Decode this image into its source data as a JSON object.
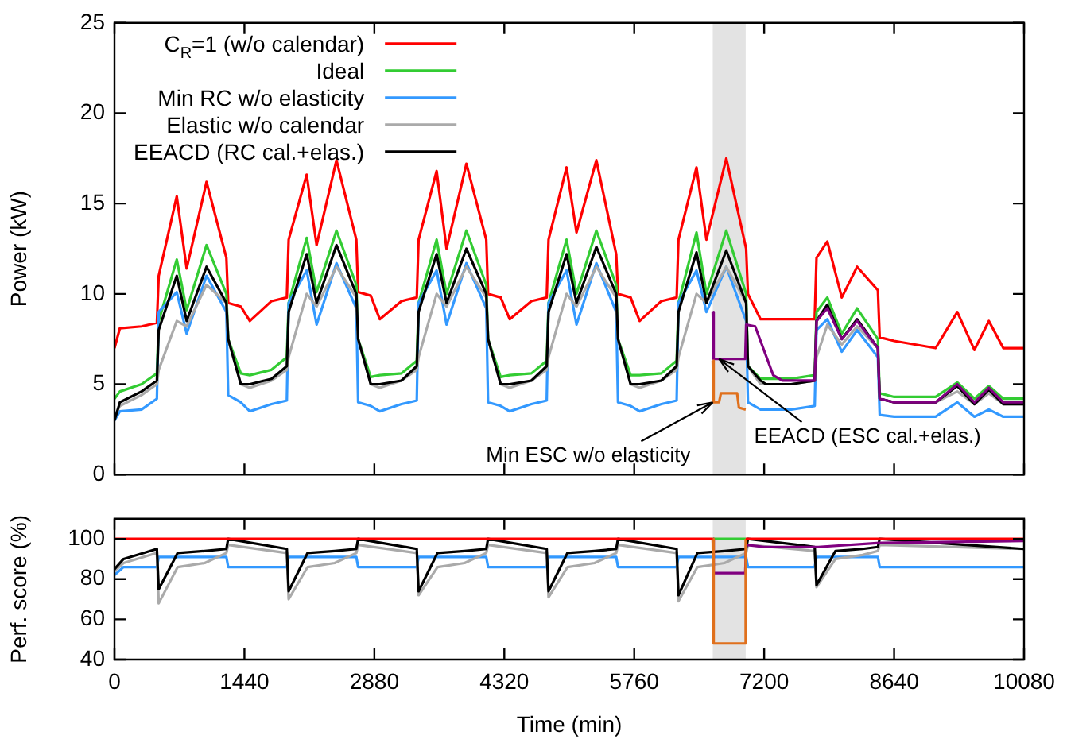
{
  "chart_data": [
    {
      "type": "line",
      "ylabel": "Power (kW)",
      "legend": "top left",
      "tick_labels": "y",
      "xlim": [
        0,
        10080
      ],
      "xticks": [
        0,
        1440,
        2880,
        4320,
        5760,
        7200,
        8640,
        10080
      ],
      "ylim": [
        0,
        25
      ],
      "yticks": [
        0,
        5,
        10,
        15,
        20,
        25
      ],
      "bands": [
        {
          "axis": "x",
          "from": 6630,
          "to": 6995,
          "color": "#e3e3e3"
        }
      ],
      "annotations": [
        {
          "text": "Min ESC w/o elasticity",
          "x": 6630,
          "y": 4
        },
        {
          "text": "EEACD (ESC cal.+elas.)",
          "x": 6700,
          "y": 6.4
        }
      ],
      "x": [
        0,
        60,
        300,
        470,
        490,
        690,
        800,
        1020,
        1240,
        1260,
        1400,
        1500,
        1740,
        1910,
        1930,
        2130,
        2240,
        2460,
        2680,
        2700,
        2840,
        2940,
        3180,
        3350,
        3370,
        3570,
        3680,
        3900,
        4120,
        4140,
        4280,
        4380,
        4620,
        4790,
        4810,
        5010,
        5120,
        5340,
        5560,
        5580,
        5720,
        5820,
        6060,
        6230,
        6250,
        6450,
        6560,
        6780,
        7000,
        7020,
        7160,
        7220,
        7500,
        7760,
        7780,
        7900,
        8060,
        8230,
        8460,
        8480,
        8640,
        9100,
        9340,
        9530,
        9690,
        9850,
        10080
      ],
      "series": [
        {
          "name": "C$_{R}$=1 (w/o calendar)",
          "color": "#ff0000",
          "values": [
            7.0,
            8.1,
            8.2,
            8.4,
            11.0,
            15.4,
            11.4,
            16.2,
            12.0,
            9.5,
            9.3,
            8.5,
            9.6,
            9.8,
            13.0,
            16.6,
            12.7,
            17.4,
            13.0,
            10.1,
            9.9,
            8.6,
            9.6,
            9.8,
            13.0,
            16.8,
            12.5,
            17.2,
            13.0,
            10.0,
            9.8,
            8.6,
            9.6,
            9.8,
            13.0,
            17.0,
            13.4,
            17.4,
            12.2,
            10.0,
            9.8,
            8.5,
            9.6,
            9.8,
            13.0,
            17.0,
            13.0,
            17.5,
            12.5,
            10.0,
            8.6,
            8.6,
            8.6,
            8.6,
            12.0,
            12.9,
            9.8,
            11.5,
            10.2,
            7.6,
            7.4,
            7.0,
            9.0,
            6.9,
            8.5,
            7.0,
            7.0
          ]
        },
        {
          "name": "Ideal",
          "color": "#33cc33",
          "values": [
            4.2,
            4.6,
            5.0,
            5.6,
            8.5,
            11.9,
            9.1,
            12.7,
            10.0,
            7.5,
            5.6,
            5.5,
            5.8,
            6.5,
            9.5,
            13.1,
            10.1,
            13.5,
            10.5,
            7.5,
            5.4,
            5.5,
            5.6,
            6.3,
            9.5,
            13.0,
            10.0,
            13.5,
            10.5,
            7.5,
            5.4,
            5.5,
            5.6,
            6.3,
            9.5,
            13.0,
            10.0,
            13.5,
            10.5,
            7.5,
            5.5,
            5.5,
            5.6,
            6.3,
            9.5,
            13.4,
            10.0,
            13.5,
            10.0,
            6.0,
            5.3,
            5.3,
            5.3,
            5.5,
            9.0,
            9.8,
            7.8,
            9.2,
            7.5,
            4.5,
            4.3,
            4.3,
            5.1,
            4.2,
            4.9,
            4.2,
            4.2
          ]
        },
        {
          "name": "Min RC w/o elasticity",
          "color": "#3399ff",
          "values": [
            3.0,
            3.5,
            3.6,
            4.2,
            9.0,
            10.1,
            7.8,
            11.0,
            9.0,
            4.4,
            4.0,
            3.5,
            3.9,
            4.1,
            9.5,
            11.3,
            8.3,
            11.7,
            9.2,
            4.0,
            3.8,
            3.5,
            3.9,
            4.1,
            9.5,
            11.3,
            8.3,
            11.7,
            9.2,
            4.0,
            3.8,
            3.5,
            3.9,
            4.1,
            9.5,
            11.3,
            8.3,
            11.7,
            9.0,
            4.0,
            3.8,
            3.5,
            3.9,
            4.1,
            9.5,
            11.3,
            9.0,
            11.5,
            8.5,
            4.0,
            3.6,
            3.6,
            3.6,
            3.8,
            8.0,
            8.6,
            6.8,
            8.0,
            6.5,
            3.3,
            3.2,
            3.2,
            4.0,
            3.2,
            3.6,
            3.2,
            3.2
          ]
        },
        {
          "name": "Elastic w/o calendar",
          "color": "#aaaaaa",
          "values": [
            3.2,
            3.8,
            4.4,
            5.0,
            5.8,
            8.5,
            8.2,
            10.5,
            9.5,
            7.5,
            5.0,
            4.8,
            5.2,
            5.8,
            6.5,
            10.0,
            9.3,
            11.5,
            9.8,
            7.5,
            5.0,
            4.8,
            5.2,
            5.8,
            6.5,
            10.0,
            9.3,
            11.5,
            9.8,
            7.5,
            5.0,
            4.8,
            5.2,
            5.8,
            6.5,
            10.0,
            9.3,
            11.5,
            9.8,
            7.5,
            5.0,
            4.8,
            5.2,
            5.8,
            6.5,
            10.0,
            9.5,
            11.5,
            9.5,
            6.0,
            5.0,
            5.0,
            5.0,
            5.2,
            6.5,
            8.3,
            7.2,
            8.2,
            7.0,
            4.2,
            4.0,
            4.0,
            4.6,
            3.9,
            4.5,
            3.9,
            3.9
          ]
        },
        {
          "name": "EEACD (RC cal.+elas.)",
          "color": "#000000",
          "values": [
            3.0,
            4.0,
            4.6,
            5.2,
            8.0,
            11.0,
            8.5,
            11.5,
            9.5,
            7.5,
            5.0,
            5.0,
            5.3,
            6.0,
            9.0,
            12.2,
            9.5,
            12.7,
            10.0,
            7.5,
            5.0,
            5.0,
            5.2,
            6.0,
            9.0,
            12.2,
            9.5,
            12.5,
            10.0,
            7.5,
            5.0,
            5.0,
            5.2,
            6.0,
            9.0,
            12.2,
            9.5,
            12.6,
            10.0,
            7.5,
            5.0,
            5.0,
            5.2,
            6.0,
            9.0,
            12.3,
            9.5,
            12.4,
            9.5,
            6.0,
            5.2,
            5.0,
            5.0,
            5.2,
            8.5,
            9.4,
            7.5,
            8.6,
            7.0,
            4.2,
            4.0,
            4.0,
            4.9,
            3.9,
            4.7,
            3.9,
            3.9
          ]
        },
        {
          "color": "#800080",
          "x": [
            6630,
            6640,
            6990,
            7000,
            7100,
            7300,
            7400,
            7760,
            7780,
            7900,
            8060,
            8230,
            8460,
            8480,
            8640,
            9100,
            9340,
            9530,
            9690,
            9850,
            10080
          ],
          "values": [
            9.0,
            6.4,
            6.4,
            8.3,
            8.2,
            5.5,
            5.2,
            5.2,
            8.5,
            9.2,
            7.5,
            8.5,
            7.0,
            4.2,
            4.0,
            4.0,
            5.0,
            4.0,
            4.8,
            4.0,
            4.0
          ]
        },
        {
          "color": "#e0701c",
          "x": [
            6630,
            6640,
            6700,
            6720,
            6900,
            6920,
            6995
          ],
          "values": [
            6.3,
            4.0,
            4.0,
            4.5,
            4.5,
            3.7,
            3.6
          ]
        }
      ]
    },
    {
      "type": "line",
      "xlabel": "Time (min)",
      "ylabel": "Perf. score (%)",
      "xlim": [
        0,
        10080
      ],
      "xticks": [
        0,
        1440,
        2880,
        4320,
        5760,
        7200,
        8640,
        10080
      ],
      "ylim": [
        40,
        110
      ],
      "yticks": [
        40,
        60,
        80,
        100
      ],
      "bands": [
        {
          "axis": "x",
          "from": 6630,
          "to": 6995,
          "color": "#e3e3e3"
        }
      ],
      "x": [
        0,
        100,
        470,
        490,
        700,
        1000,
        1240,
        1260,
        1910,
        1930,
        2140,
        2440,
        2680,
        2700,
        3350,
        3370,
        3580,
        3880,
        4120,
        4140,
        4790,
        4810,
        5020,
        5320,
        5560,
        5580,
        6230,
        6250,
        6460,
        6760,
        7000,
        7020,
        7760,
        7780,
        7990,
        8290,
        8460,
        8480,
        10080
      ],
      "series": [
        {
          "color": "#33cc33",
          "x": [
            6630,
            6995
          ],
          "values": [
            100,
            100
          ]
        },
        {
          "color": "#3399ff",
          "values": [
            82,
            86,
            86,
            91,
            91,
            91,
            91,
            86,
            86,
            91,
            91,
            91,
            91,
            86,
            86,
            91,
            91,
            91,
            91,
            86,
            86,
            91,
            91,
            91,
            91,
            86,
            86,
            91,
            91,
            91,
            91,
            86,
            86,
            91,
            91,
            91,
            91,
            86,
            86
          ]
        },
        {
          "color": "#aaaaaa",
          "values": [
            84,
            88,
            93,
            68,
            86,
            88,
            93,
            97,
            93,
            70,
            86,
            88,
            93,
            97,
            93,
            72,
            86,
            88,
            93,
            97,
            93,
            71,
            86,
            88,
            93,
            97,
            93,
            69,
            86,
            88,
            93,
            97,
            94,
            76,
            90,
            92,
            94,
            97,
            95
          ]
        },
        {
          "color": "#000000",
          "values": [
            85,
            90,
            95,
            75,
            93,
            94,
            95,
            100,
            95,
            74,
            93,
            94,
            95,
            100,
            95,
            74,
            93,
            94,
            95,
            100,
            95,
            74,
            93,
            94,
            95,
            100,
            95,
            72,
            93,
            94,
            95,
            100,
            96,
            77,
            94,
            95,
            96,
            100,
            95
          ]
        },
        {
          "color": "#800080",
          "x": [
            6630,
            6640,
            6990,
            7000,
            7200,
            7780,
            7800,
            8480,
            8500,
            10080
          ],
          "values": [
            100,
            83,
            83,
            97,
            96,
            96,
            96,
            98,
            98,
            99
          ]
        },
        {
          "color": "#e0701c",
          "x": [
            6630,
            6640,
            6990,
            6995
          ],
          "values": [
            100,
            48,
            48,
            100
          ]
        },
        {
          "color": "#ff0000",
          "x": [
            0,
            6630,
            6800,
            6995,
            10080
          ],
          "values": [
            100,
            100,
            null,
            100,
            100
          ]
        }
      ]
    }
  ]
}
